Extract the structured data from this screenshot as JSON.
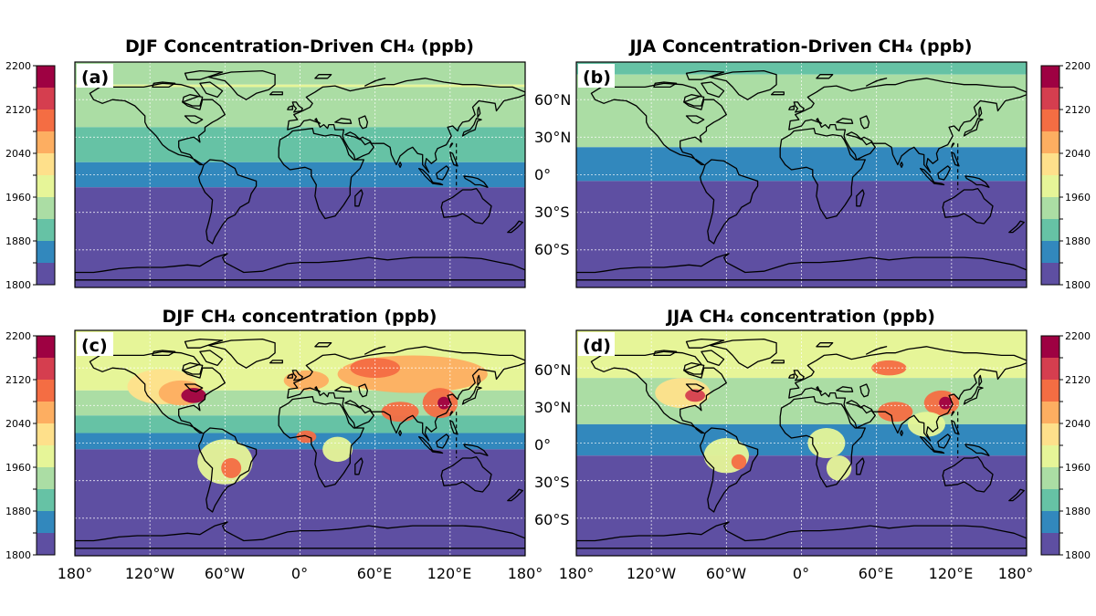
{
  "figure": {
    "colorbar_ticks": [
      "2200",
      "2120",
      "2040",
      "1960",
      "1880",
      "1800"
    ],
    "lon_ticks": [
      "180°",
      "120°W",
      "60°W",
      "0°",
      "60°E",
      "120°E",
      "180°"
    ],
    "lat_ticks": [
      "60°N",
      "30°N",
      "0°",
      "30°S",
      "60°S"
    ],
    "colors": {
      "c1800": "#5e4fa2",
      "c1840": "#3288bd",
      "c1880": "#66c2a5",
      "c1920": "#abdda4",
      "c1960": "#e6f598",
      "c2000": "#fee08b",
      "c2040": "#fdae61",
      "c2080": "#f46d43",
      "c2120": "#d53e4f",
      "c2160": "#9e0142"
    }
  },
  "chart_data": [
    {
      "type": "heatmap",
      "panel": "(a)",
      "title": "DJF Concentration-Driven CH₄ (ppb)",
      "colorbar": {
        "min": 1800,
        "max": 2200,
        "step": 40,
        "ticks": [
          1800,
          1880,
          1960,
          2040,
          2120,
          2200
        ]
      },
      "lat_bands": [
        {
          "lat_from": 90,
          "lat_to": 72,
          "value": 1940
        },
        {
          "lat_from": 72,
          "lat_to": 70,
          "value": 1960
        },
        {
          "lat_from": 70,
          "lat_to": 38,
          "value": 1940
        },
        {
          "lat_from": 38,
          "lat_to": 10,
          "value": 1900
        },
        {
          "lat_from": 10,
          "lat_to": -10,
          "value": 1860
        },
        {
          "lat_from": -10,
          "lat_to": -90,
          "value": 1820
        }
      ]
    },
    {
      "type": "heatmap",
      "panel": "(b)",
      "title": "JJA Concentration-Driven CH₄ (ppb)",
      "colorbar": {
        "min": 1800,
        "max": 2200,
        "step": 40,
        "ticks": [
          1800,
          1880,
          1960,
          2040,
          2120,
          2200
        ]
      },
      "lat_bands": [
        {
          "lat_from": 90,
          "lat_to": 80,
          "value": 1900
        },
        {
          "lat_from": 80,
          "lat_to": 22,
          "value": 1940
        },
        {
          "lat_from": 22,
          "lat_to": -5,
          "value": 1860
        },
        {
          "lat_from": -5,
          "lat_to": -90,
          "value": 1820
        }
      ]
    },
    {
      "type": "heatmap",
      "panel": "(c)",
      "title": "DJF CH₄ concentration (ppb)",
      "colorbar": {
        "min": 1800,
        "max": 2200,
        "step": 40,
        "ticks": [
          1800,
          1880,
          1960,
          2040,
          2120,
          2200
        ]
      },
      "lat_bands": [
        {
          "lat_from": 90,
          "lat_to": 42,
          "value": 1980
        },
        {
          "lat_from": 42,
          "lat_to": 22,
          "value": 1940
        },
        {
          "lat_from": 22,
          "lat_to": 8,
          "value": 1900
        },
        {
          "lat_from": 8,
          "lat_to": -5,
          "value": 1860
        },
        {
          "lat_from": -5,
          "lat_to": -90,
          "value": 1820
        }
      ],
      "hotspots": [
        {
          "lon": -110,
          "lat": 45,
          "rx": 28,
          "ry": 14,
          "value": 2000
        },
        {
          "lon": -95,
          "lat": 40,
          "rx": 18,
          "ry": 10,
          "value": 2060
        },
        {
          "lon": -85,
          "lat": 38,
          "rx": 10,
          "ry": 6,
          "value": 2160
        },
        {
          "lon": -60,
          "lat": -15,
          "rx": 22,
          "ry": 18,
          "value": 1980
        },
        {
          "lon": -55,
          "lat": -20,
          "rx": 8,
          "ry": 8,
          "value": 2080
        },
        {
          "lon": 5,
          "lat": 50,
          "rx": 18,
          "ry": 8,
          "value": 2040
        },
        {
          "lon": 90,
          "lat": 55,
          "rx": 60,
          "ry": 15,
          "value": 2040
        },
        {
          "lon": 60,
          "lat": 60,
          "rx": 20,
          "ry": 8,
          "value": 2100
        },
        {
          "lon": 80,
          "lat": 25,
          "rx": 15,
          "ry": 8,
          "value": 2080
        },
        {
          "lon": 112,
          "lat": 32,
          "rx": 14,
          "ry": 12,
          "value": 2100
        },
        {
          "lon": 115,
          "lat": 32,
          "rx": 5,
          "ry": 5,
          "value": 2160
        },
        {
          "lon": 5,
          "lat": 5,
          "rx": 8,
          "ry": 5,
          "value": 2100
        },
        {
          "lon": 30,
          "lat": -5,
          "rx": 12,
          "ry": 10,
          "value": 1980
        }
      ]
    },
    {
      "type": "heatmap",
      "panel": "(d)",
      "title": "JJA CH₄ concentration (ppb)",
      "colorbar": {
        "min": 1800,
        "max": 2200,
        "step": 40,
        "ticks": [
          1800,
          1880,
          1960,
          2040,
          2120,
          2200
        ]
      },
      "lat_bands": [
        {
          "lat_from": 90,
          "lat_to": 52,
          "value": 1980
        },
        {
          "lat_from": 52,
          "lat_to": 15,
          "value": 1940
        },
        {
          "lat_from": 15,
          "lat_to": -10,
          "value": 1860
        },
        {
          "lat_from": -10,
          "lat_to": -90,
          "value": 1820
        }
      ],
      "hotspots": [
        {
          "lon": -95,
          "lat": 40,
          "rx": 22,
          "ry": 12,
          "value": 2000
        },
        {
          "lon": -85,
          "lat": 38,
          "rx": 8,
          "ry": 5,
          "value": 2120
        },
        {
          "lon": -60,
          "lat": -10,
          "rx": 18,
          "ry": 14,
          "value": 1980
        },
        {
          "lon": -50,
          "lat": -15,
          "rx": 6,
          "ry": 6,
          "value": 2080
        },
        {
          "lon": 70,
          "lat": 60,
          "rx": 14,
          "ry": 6,
          "value": 2080
        },
        {
          "lon": 75,
          "lat": 25,
          "rx": 14,
          "ry": 8,
          "value": 2080
        },
        {
          "lon": 112,
          "lat": 32,
          "rx": 14,
          "ry": 10,
          "value": 2080
        },
        {
          "lon": 115,
          "lat": 32,
          "rx": 5,
          "ry": 5,
          "value": 2160
        },
        {
          "lon": 20,
          "lat": 0,
          "rx": 15,
          "ry": 12,
          "value": 1980
        },
        {
          "lon": 100,
          "lat": 15,
          "rx": 15,
          "ry": 10,
          "value": 1980
        },
        {
          "lon": 30,
          "lat": -20,
          "rx": 10,
          "ry": 10,
          "value": 1960
        }
      ]
    }
  ]
}
